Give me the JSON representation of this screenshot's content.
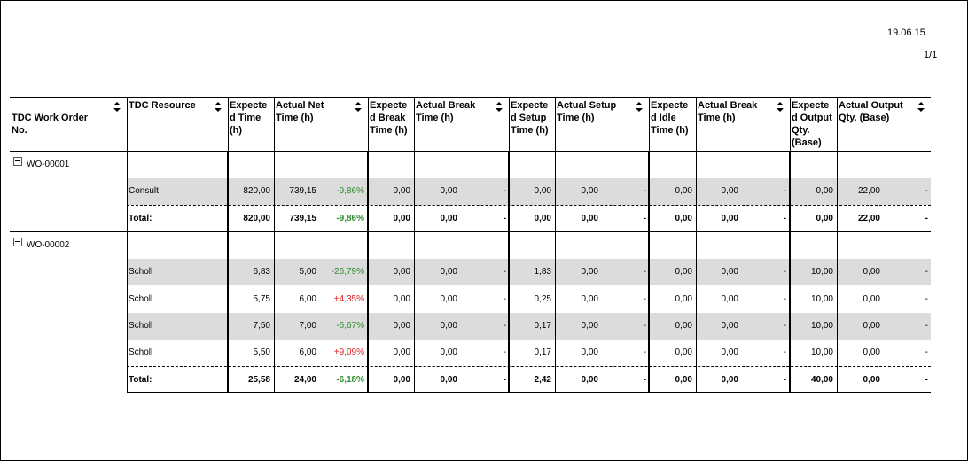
{
  "report": {
    "date": "19.06.15",
    "page": "1/1"
  },
  "columns": [
    {
      "label": "TDC Work Order No.",
      "sortable": true
    },
    {
      "label": "TDC Resource",
      "sortable": true
    },
    {
      "label": "Expected Time (h)",
      "sortable": false
    },
    {
      "label": "Actual Net Time (h)",
      "sortable": true
    },
    {
      "label": "Expected Break Time (h)",
      "sortable": false
    },
    {
      "label": "Actual Break Time (h)",
      "sortable": true
    },
    {
      "label": "Expected Setup Time (h)",
      "sortable": false
    },
    {
      "label": "Actual Setup Time (h)",
      "sortable": true
    },
    {
      "label": "Expected Idle Time (h)",
      "sortable": false
    },
    {
      "label": "Actual Break Time (h)",
      "sortable": true
    },
    {
      "label": "Expected Output Qty.",
      "sortable": false
    },
    {
      "label": "Actual Output Qty. (Base)",
      "sortable": true
    }
  ],
  "header_lines": [
    [
      "TDC Work Order",
      "No."
    ],
    [
      "TDC Resource"
    ],
    [
      "Expecte",
      "d Time",
      "(h)"
    ],
    [
      "Actual Net",
      "Time (h)"
    ],
    [
      "Expecte",
      "d Break",
      "Time (h)"
    ],
    [
      "Actual Break",
      "Time (h)"
    ],
    [
      "Expecte",
      "d Setup",
      "Time (h)"
    ],
    [
      "Actual Setup",
      "Time (h)"
    ],
    [
      "Expecte",
      "d Idle",
      "Time (h)"
    ],
    [
      "Actual Break",
      "Time (h)"
    ],
    [
      "Expecte",
      "d Output",
      "Qty.",
      "(Base)"
    ],
    [
      "Actual Output",
      "Qty. (Base)"
    ]
  ],
  "groups": [
    {
      "work_order": "WO-00001",
      "rows": [
        {
          "resource": "Consult",
          "exp_time": "820,00",
          "net_time": "739,15",
          "net_dev": "-9,86%",
          "exp_break": "0,00",
          "act_break": "0,00",
          "break_dev": "-",
          "exp_setup": "0,00",
          "act_setup": "0,00",
          "setup_dev": "-",
          "exp_idle": "0,00",
          "act_idle": "0,00",
          "idle_dev": "-",
          "exp_output": "0,00",
          "act_output": "22,00",
          "output_dev": "-"
        }
      ],
      "total": {
        "label": "Total:",
        "exp_time": "820,00",
        "net_time": "739,15",
        "net_dev": "-9,86%",
        "exp_break": "0,00",
        "act_break": "0,00",
        "break_dev": "-",
        "exp_setup": "0,00",
        "act_setup": "0,00",
        "setup_dev": "-",
        "exp_idle": "0,00",
        "act_idle": "0,00",
        "idle_dev": "-",
        "exp_output": "0,00",
        "act_output": "22,00",
        "output_dev": "-"
      }
    },
    {
      "work_order": "WO-00002",
      "rows": [
        {
          "resource": "Scholl",
          "exp_time": "6,83",
          "net_time": "5,00",
          "net_dev": "-26,79%",
          "exp_break": "0,00",
          "act_break": "0,00",
          "break_dev": "-",
          "exp_setup": "1,83",
          "act_setup": "0,00",
          "setup_dev": "-",
          "exp_idle": "0,00",
          "act_idle": "0,00",
          "idle_dev": "-",
          "exp_output": "10,00",
          "act_output": "0,00",
          "output_dev": "-"
        },
        {
          "resource": "Scholl",
          "exp_time": "5,75",
          "net_time": "6,00",
          "net_dev": "+4,35%",
          "exp_break": "0,00",
          "act_break": "0,00",
          "break_dev": "-",
          "exp_setup": "0,25",
          "act_setup": "0,00",
          "setup_dev": "-",
          "exp_idle": "0,00",
          "act_idle": "0,00",
          "idle_dev": "-",
          "exp_output": "10,00",
          "act_output": "0,00",
          "output_dev": "-"
        },
        {
          "resource": "Scholl",
          "exp_time": "7,50",
          "net_time": "7,00",
          "net_dev": "-6,67%",
          "exp_break": "0,00",
          "act_break": "0,00",
          "break_dev": "-",
          "exp_setup": "0,17",
          "act_setup": "0,00",
          "setup_dev": "-",
          "exp_idle": "0,00",
          "act_idle": "0,00",
          "idle_dev": "-",
          "exp_output": "10,00",
          "act_output": "0,00",
          "output_dev": "-"
        },
        {
          "resource": "Scholl",
          "exp_time": "5,50",
          "net_time": "6,00",
          "net_dev": "+9,09%",
          "exp_break": "0,00",
          "act_break": "0,00",
          "break_dev": "-",
          "exp_setup": "0,17",
          "act_setup": "0,00",
          "setup_dev": "-",
          "exp_idle": "0,00",
          "act_idle": "0,00",
          "idle_dev": "-",
          "exp_output": "10,00",
          "act_output": "0,00",
          "output_dev": "-"
        }
      ],
      "total": {
        "label": "Total:",
        "exp_time": "25,58",
        "net_time": "24,00",
        "net_dev": "-6,18%",
        "exp_break": "0,00",
        "act_break": "0,00",
        "break_dev": "-",
        "exp_setup": "2,42",
        "act_setup": "0,00",
        "setup_dev": "-",
        "exp_idle": "0,00",
        "act_idle": "0,00",
        "idle_dev": "-",
        "exp_output": "40,00",
        "act_output": "0,00",
        "output_dev": "-"
      }
    }
  ],
  "colors": {
    "row_shade": "#dcdcdc",
    "negative_deviation": "#2e8b2e",
    "positive_deviation": "#e02020"
  },
  "icons": {
    "group_toggle": "collapse-minus-icon",
    "sort": "sort-updown-icon"
  }
}
